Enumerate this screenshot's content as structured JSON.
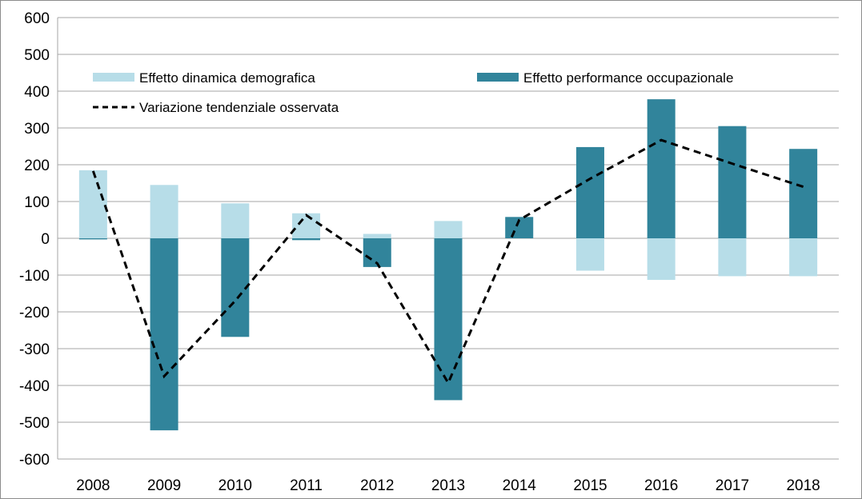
{
  "chart_data": {
    "type": "bar",
    "categories": [
      "2008",
      "2009",
      "2010",
      "2011",
      "2012",
      "2013",
      "2014",
      "2015",
      "2016",
      "2017",
      "2018"
    ],
    "series": [
      {
        "name": "Effetto dinamica demografica",
        "kind": "bar",
        "color": "#b7dde8",
        "values": [
          185,
          145,
          95,
          68,
          12,
          47,
          0,
          -88,
          -113,
          -103,
          -103
        ]
      },
      {
        "name": "Effetto performance occupazionale",
        "kind": "bar",
        "color": "#31849b",
        "values": [
          -3,
          -522,
          -268,
          -5,
          -78,
          -440,
          58,
          248,
          378,
          305,
          243
        ]
      },
      {
        "name": "Variazione tendenziale osservata",
        "kind": "line",
        "style": "dashed",
        "color": "#000000",
        "values": [
          183,
          -375,
          -170,
          63,
          -68,
          -393,
          50,
          162,
          267,
          203,
          140
        ]
      }
    ],
    "ylim": [
      -600,
      600
    ],
    "yticks": [
      "600",
      "500",
      "400",
      "300",
      "200",
      "100",
      "0",
      "-100",
      "-200",
      "-300",
      "-400",
      "-500",
      "-600"
    ],
    "xlabel": "",
    "ylabel": "",
    "grid": true,
    "legend_position": "top"
  }
}
